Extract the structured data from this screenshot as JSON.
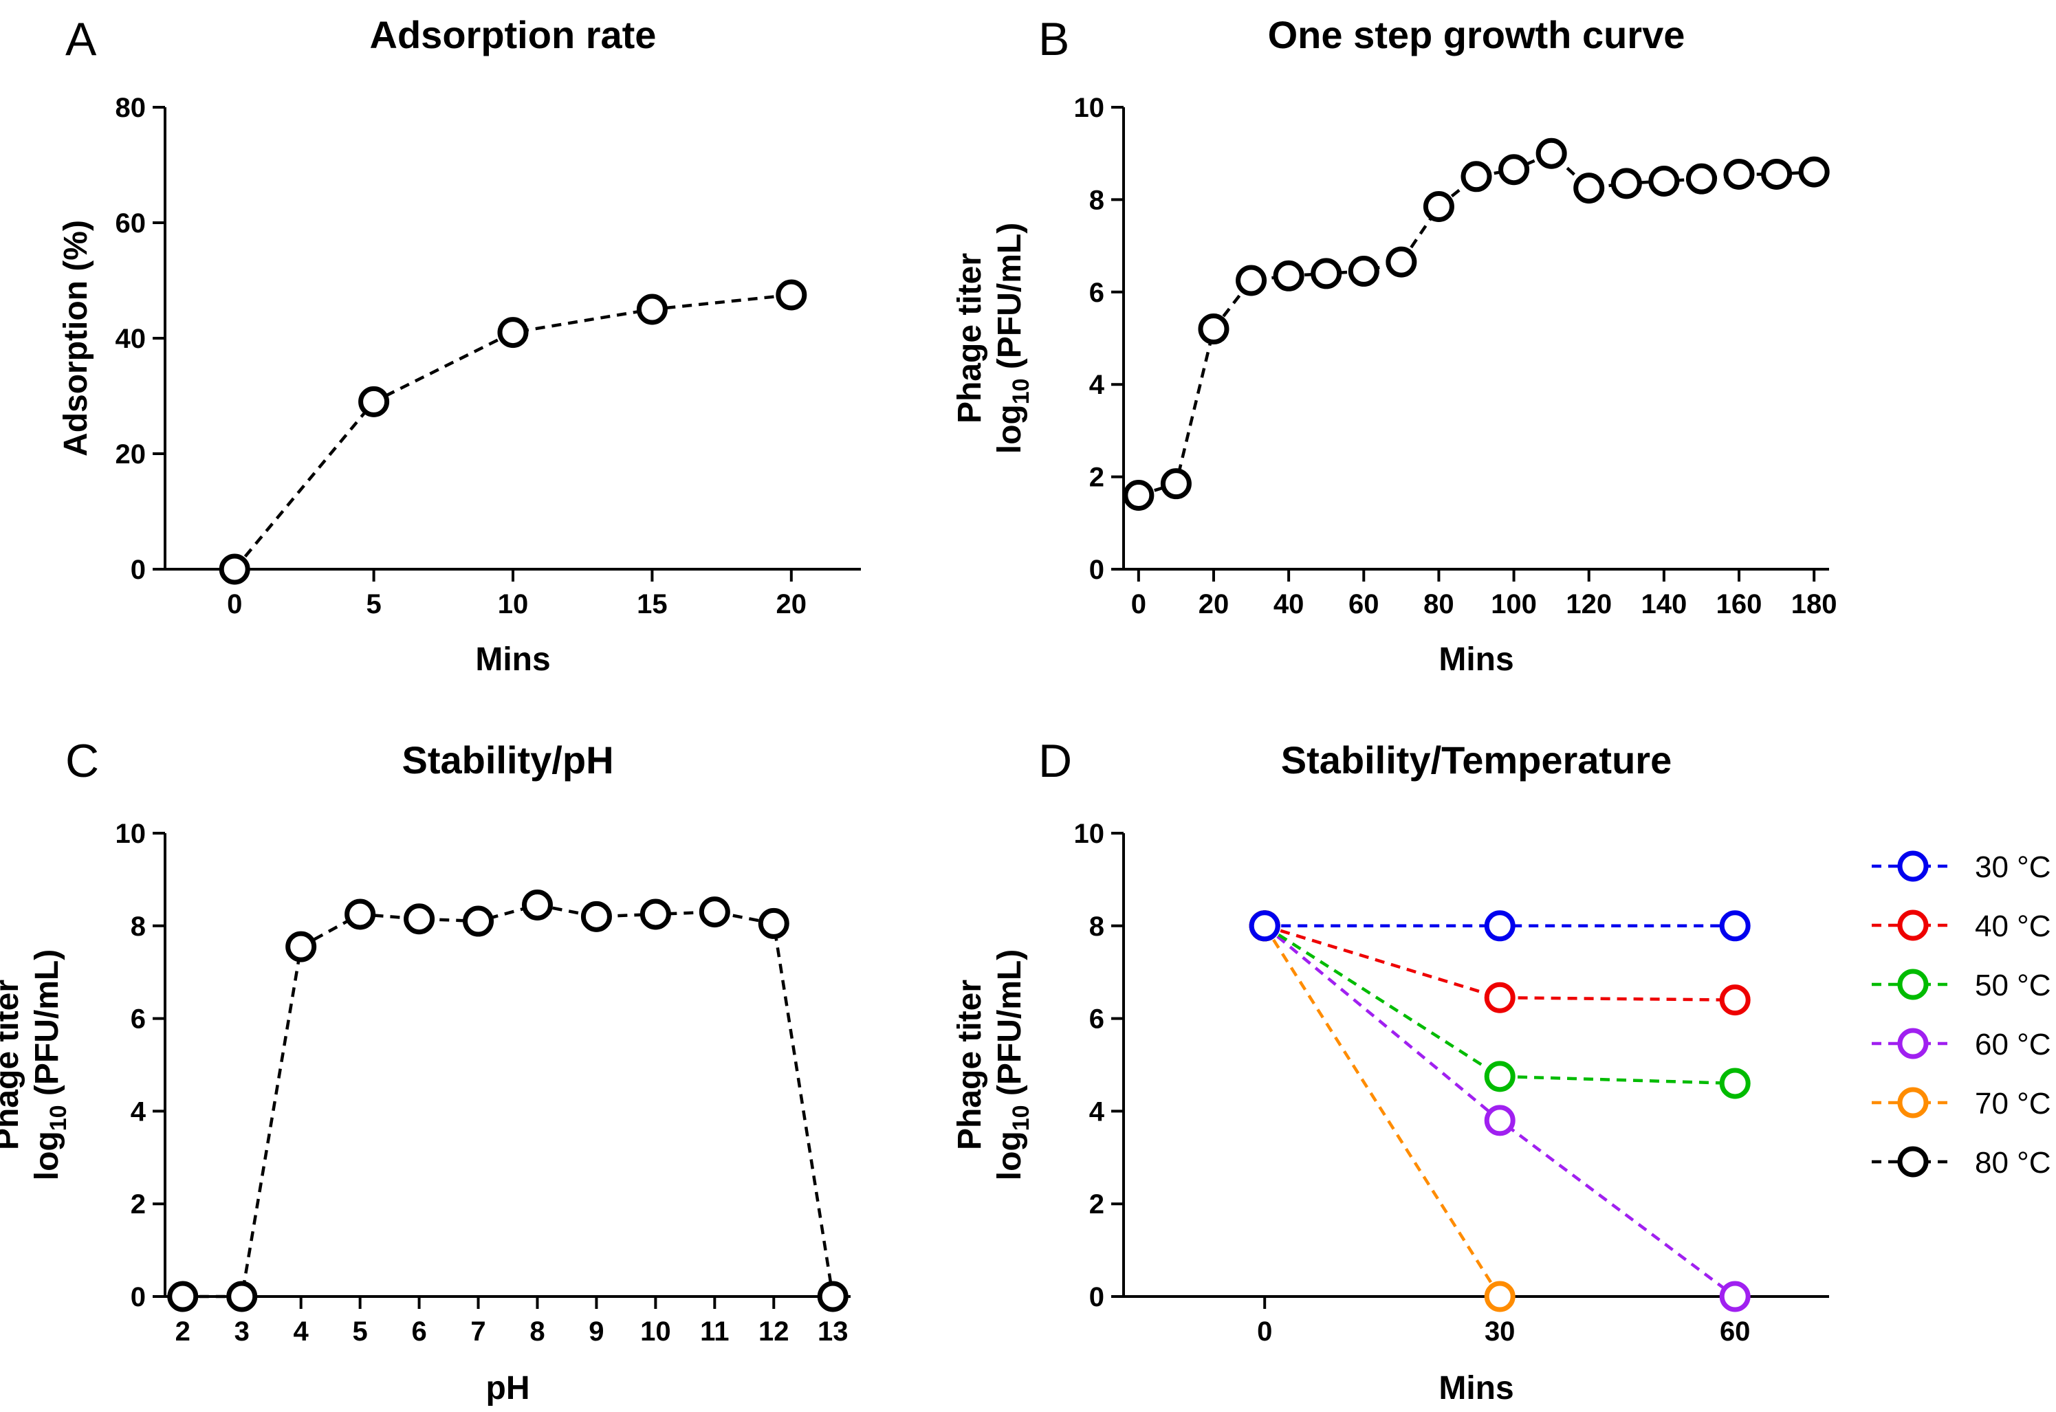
{
  "chart_data": [
    {
      "id": "A",
      "panel_letter": "A",
      "type": "line",
      "title": "Adsorption rate",
      "xlabel": "Mins",
      "ylabel_lines": [
        "Adsorption (%)"
      ],
      "xlim": [
        -2.5,
        22.5
      ],
      "ylim": [
        0,
        80
      ],
      "xticks": [
        0,
        5,
        10,
        15,
        20
      ],
      "yticks": [
        0,
        20,
        40,
        60,
        80
      ],
      "series": [
        {
          "name": "Adsorption",
          "color": "#000000",
          "x": [
            0,
            5,
            10,
            15,
            20
          ],
          "y": [
            0,
            29,
            41,
            45,
            47.5
          ]
        }
      ]
    },
    {
      "id": "B",
      "panel_letter": "B",
      "type": "line",
      "title": "One step growth curve",
      "xlabel": "Mins",
      "ylabel_lines": [
        "Phage titer",
        "log10 (PFU/mL)"
      ],
      "xlim": [
        -4,
        184
      ],
      "ylim": [
        0,
        10
      ],
      "xticks": [
        0,
        20,
        40,
        60,
        80,
        100,
        120,
        140,
        160,
        180
      ],
      "yticks": [
        0,
        2,
        4,
        6,
        8,
        10
      ],
      "series": [
        {
          "name": "Phage titer",
          "color": "#000000",
          "x": [
            0,
            10,
            20,
            30,
            40,
            50,
            60,
            70,
            80,
            90,
            100,
            110,
            120,
            130,
            140,
            150,
            160,
            170,
            180
          ],
          "y": [
            1.6,
            1.85,
            5.2,
            6.25,
            6.35,
            6.4,
            6.45,
            6.65,
            7.85,
            8.5,
            8.65,
            9.0,
            8.25,
            8.35,
            8.4,
            8.45,
            8.55,
            8.55,
            8.6
          ]
        }
      ]
    },
    {
      "id": "C",
      "panel_letter": "C",
      "type": "line",
      "title": "Stability/pH",
      "xlabel": "pH",
      "ylabel_lines": [
        "Phage titer",
        "log10 (PFU/mL)"
      ],
      "xlim": [
        1.7,
        13.3
      ],
      "ylim": [
        0,
        10
      ],
      "xticks": [
        2,
        3,
        4,
        5,
        6,
        7,
        8,
        9,
        10,
        11,
        12,
        13
      ],
      "yticks": [
        0,
        2,
        4,
        6,
        8,
        10
      ],
      "series": [
        {
          "name": "Phage titer",
          "color": "#000000",
          "x": [
            2,
            3,
            4,
            5,
            6,
            7,
            8,
            9,
            10,
            11,
            12,
            13
          ],
          "y": [
            0,
            0,
            7.55,
            8.25,
            8.15,
            8.1,
            8.45,
            8.2,
            8.25,
            8.3,
            8.05,
            0
          ]
        }
      ]
    },
    {
      "id": "D",
      "panel_letter": "D",
      "type": "line",
      "title": "Stability/Temperature",
      "xlabel": "Mins",
      "ylabel_lines": [
        "Phage titer",
        "log10 (PFU/mL)"
      ],
      "xlim": [
        -18,
        72
      ],
      "ylim": [
        0,
        10
      ],
      "xticks": [
        0,
        30,
        60
      ],
      "yticks": [
        0,
        2,
        4,
        6,
        8,
        10
      ],
      "legend_position": "right",
      "series": [
        {
          "name": "30 °C",
          "color": "#0000ee",
          "x": [
            0,
            30,
            60
          ],
          "y": [
            8,
            8,
            8
          ]
        },
        {
          "name": "40 °C",
          "color": "#ee0000",
          "x": [
            0,
            30,
            60
          ],
          "y": [
            8,
            6.45,
            6.4
          ]
        },
        {
          "name": "50 °C",
          "color": "#00bb00",
          "x": [
            0,
            30,
            60
          ],
          "y": [
            8,
            4.75,
            4.6
          ]
        },
        {
          "name": "60 °C",
          "color": "#a020f0",
          "x": [
            0,
            30,
            60
          ],
          "y": [
            8,
            3.8,
            0
          ]
        },
        {
          "name": "70 °C",
          "color": "#ff8c00",
          "x": [
            0,
            30
          ],
          "y": [
            8,
            0
          ]
        },
        {
          "name": "80 °C",
          "color": "#000000",
          "x": [
            0
          ],
          "y": [
            8
          ]
        }
      ]
    }
  ]
}
